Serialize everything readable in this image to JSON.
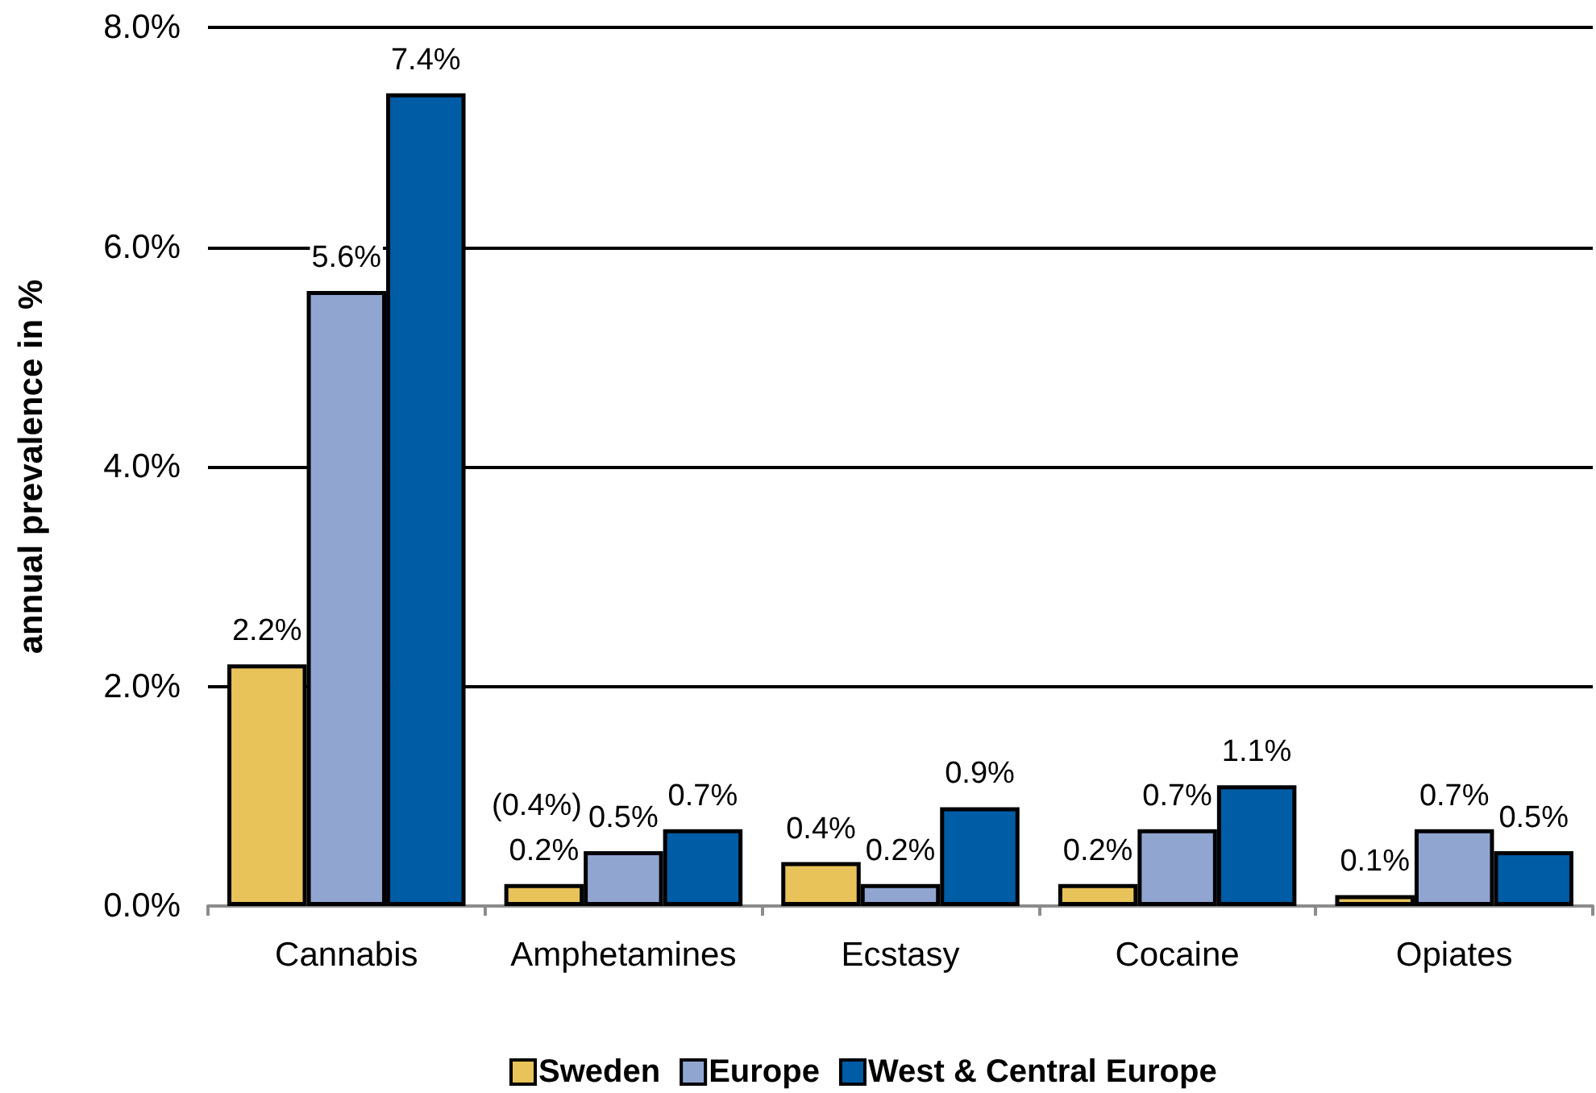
{
  "chart_data": {
    "type": "bar",
    "ylabel": "annual prevalence in %",
    "categories": [
      "Cannabis",
      "Amphetamines",
      "Ecstasy",
      "Cocaine",
      "Opiates"
    ],
    "series": [
      {
        "name": "Sweden",
        "color": "#e8c35a",
        "values": [
          2.2,
          0.2,
          0.4,
          0.2,
          0.1
        ],
        "value_labels": [
          "2.2%",
          "0.2%",
          "0.4%",
          "0.2%",
          "0.1%"
        ]
      },
      {
        "name": "Europe",
        "color": "#91a5d1",
        "values": [
          5.6,
          0.5,
          0.2,
          0.7,
          0.7
        ],
        "value_labels": [
          "5.6%",
          "0.5%",
          "0.2%",
          "0.7%",
          "0.7%"
        ]
      },
      {
        "name": "West & Central Europe",
        "color": "#005ca4",
        "values": [
          7.4,
          0.7,
          0.9,
          1.1,
          0.5
        ],
        "value_labels": [
          "7.4%",
          "0.7%",
          "0.9%",
          "1.1%",
          "0.5%"
        ]
      }
    ],
    "annotations": [
      "(0.4%)"
    ],
    "ylim": [
      0,
      8
    ],
    "yticks": [
      {
        "value": 0,
        "label": "0.0%"
      },
      {
        "value": 2,
        "label": "2.0%"
      },
      {
        "value": 4,
        "label": "4.0%"
      },
      {
        "value": 6,
        "label": "6.0%"
      },
      {
        "value": 8,
        "label": "8.0%"
      }
    ],
    "grid": "y",
    "legend": "bottom"
  }
}
